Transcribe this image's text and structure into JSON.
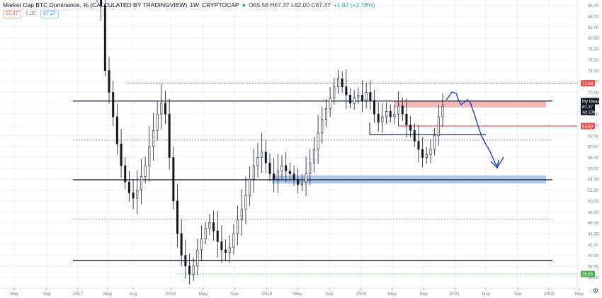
{
  "header": {
    "title": "Market Cap BTC Dominance, % (CALCULATED BY TRADINGVIEW)",
    "interval": "1W",
    "exchange": "CRYPTOCAP",
    "ohlc": "O65.58 H67.37 L62.00 C67.37",
    "change": "+1.82 (+2.78%)",
    "input_a": "67.37",
    "input_b": "0.00",
    "input_c": "67.37"
  },
  "colors": {
    "up": "#26a69a",
    "down": "#ef5350",
    "candle": "#131722",
    "accent": "#2962ff"
  },
  "chart_data": {
    "type": "candlestick",
    "x_tick_labels": [
      "May",
      "Sep",
      "2017",
      "May",
      "Aug",
      "2018",
      "May",
      "Sep",
      "2019",
      "May",
      "Sep",
      "2020",
      "May",
      "Sep",
      "2021",
      "May",
      "Sep",
      "2022",
      "May"
    ],
    "y_ticks": [
      36,
      38,
      40,
      42,
      44,
      46,
      48,
      50,
      52,
      54,
      56,
      58,
      60,
      62,
      64,
      66,
      68,
      70,
      72,
      74,
      76,
      78,
      80,
      82,
      84,
      86
    ],
    "ylim": [
      35,
      87
    ],
    "price_labels": [
      {
        "text": "71.68",
        "value": 71.68,
        "color": "#ef5350"
      },
      {
        "text": "67.37",
        "value": 67.37,
        "color": "#131722"
      },
      {
        "text": "My Ideas",
        "value": 68.4,
        "color": "#131722"
      },
      {
        "text": "4d 10h",
        "value": 66.4,
        "color": "#131722"
      },
      {
        "text": "63.80",
        "value": 63.8,
        "color": "#ef5350"
      },
      {
        "text": "36.55",
        "value": 36.55,
        "color": "#4caf50"
      }
    ],
    "horizontal_levels": [
      {
        "value": 68.4,
        "style": "solid",
        "color": "#131722"
      },
      {
        "value": 53.9,
        "style": "solid",
        "color": "#131722"
      },
      {
        "value": 39.0,
        "style": "solid",
        "color": "#131722"
      },
      {
        "value": 71.68,
        "style": "dotted",
        "color": "#ef5350"
      },
      {
        "value": 61.2,
        "style": "dotted",
        "color": "#787b86"
      },
      {
        "value": 46.6,
        "style": "dotted",
        "color": "#787b86"
      },
      {
        "value": 36.55,
        "style": "dotted",
        "color": "#4caf50"
      },
      {
        "value": 63.8,
        "style": "solid",
        "color": "#ef5350"
      }
    ],
    "zones": [
      {
        "label": "resistance",
        "top": 68.4,
        "bottom": 67.2,
        "color": "#ef9a9a"
      },
      {
        "label": "support",
        "top": 54.7,
        "bottom": 53.2,
        "color": "#8fb1e3"
      }
    ],
    "path_points": [
      [
        0,
        87.5
      ],
      [
        1,
        86.0
      ],
      [
        2,
        74.0
      ],
      [
        3,
        70.0
      ],
      [
        4,
        65.5
      ],
      [
        5,
        60.5
      ],
      [
        6,
        56.5
      ],
      [
        7,
        53.5
      ],
      [
        8,
        51.5
      ],
      [
        9,
        50.5
      ],
      [
        10,
        52.0
      ],
      [
        11,
        54.5
      ],
      [
        12,
        56.5
      ],
      [
        13,
        60.0
      ],
      [
        14,
        63.0
      ],
      [
        15,
        66.0
      ],
      [
        16,
        68.0
      ],
      [
        17,
        66.0
      ],
      [
        18,
        58.0
      ],
      [
        19,
        50.0
      ],
      [
        20,
        44.0
      ],
      [
        21,
        40.0
      ],
      [
        22,
        38.0
      ],
      [
        23,
        36.5
      ],
      [
        24,
        38.0
      ],
      [
        25,
        41.0
      ],
      [
        26,
        43.0
      ],
      [
        27,
        45.0
      ],
      [
        28,
        46.0
      ],
      [
        29,
        44.5
      ],
      [
        30,
        42.5
      ],
      [
        31,
        41.0
      ],
      [
        32,
        40.5
      ],
      [
        33,
        41.5
      ],
      [
        34,
        44.0
      ],
      [
        35,
        46.5
      ],
      [
        36,
        48.5
      ],
      [
        37,
        51.0
      ],
      [
        38,
        54.0
      ],
      [
        39,
        56.5
      ],
      [
        40,
        58.0
      ],
      [
        41,
        59.0
      ],
      [
        42,
        57.0
      ],
      [
        43,
        55.0
      ],
      [
        44,
        54.0
      ],
      [
        45,
        55.5
      ],
      [
        46,
        56.5
      ],
      [
        47,
        55.5
      ],
      [
        48,
        55.0
      ],
      [
        49,
        54.0
      ],
      [
        50,
        53.0
      ],
      [
        51,
        53.5
      ],
      [
        52,
        55.0
      ],
      [
        53,
        57.0
      ],
      [
        54,
        59.5
      ],
      [
        55,
        62.5
      ],
      [
        56,
        65.0
      ],
      [
        57,
        67.0
      ],
      [
        58,
        69.0
      ],
      [
        59,
        71.0
      ],
      [
        60,
        72.5
      ],
      [
        61,
        71.0
      ],
      [
        62,
        69.5
      ],
      [
        63,
        68.0
      ],
      [
        64,
        69.0
      ],
      [
        65,
        69.5
      ],
      [
        66,
        68.5
      ],
      [
        67,
        70.0
      ],
      [
        68,
        68.5
      ],
      [
        69,
        66.0
      ],
      [
        70,
        64.5
      ],
      [
        71,
        65.5
      ],
      [
        72,
        66.5
      ],
      [
        73,
        65.5
      ],
      [
        74,
        66.0
      ],
      [
        75,
        67.5
      ],
      [
        76,
        66.0
      ],
      [
        77,
        64.0
      ],
      [
        78,
        63.0
      ],
      [
        79,
        61.0
      ],
      [
        80,
        59.5
      ],
      [
        81,
        58.0
      ],
      [
        82,
        58.5
      ],
      [
        83,
        59.5
      ],
      [
        84,
        62.0
      ],
      [
        85,
        65.5
      ],
      [
        86,
        67.4
      ]
    ],
    "projection": [
      [
        630,
        141
      ],
      [
        634,
        136
      ],
      [
        638,
        130
      ],
      [
        644,
        132
      ],
      [
        648,
        143
      ],
      [
        651,
        148
      ],
      [
        655,
        145
      ],
      [
        660,
        141
      ],
      [
        664,
        145
      ],
      [
        670,
        162
      ],
      [
        675,
        178
      ],
      [
        680,
        192
      ],
      [
        686,
        204
      ],
      [
        692,
        214
      ],
      [
        698,
        228
      ],
      [
        702,
        236
      ],
      [
        707,
        229
      ],
      [
        711,
        222
      ]
    ]
  }
}
